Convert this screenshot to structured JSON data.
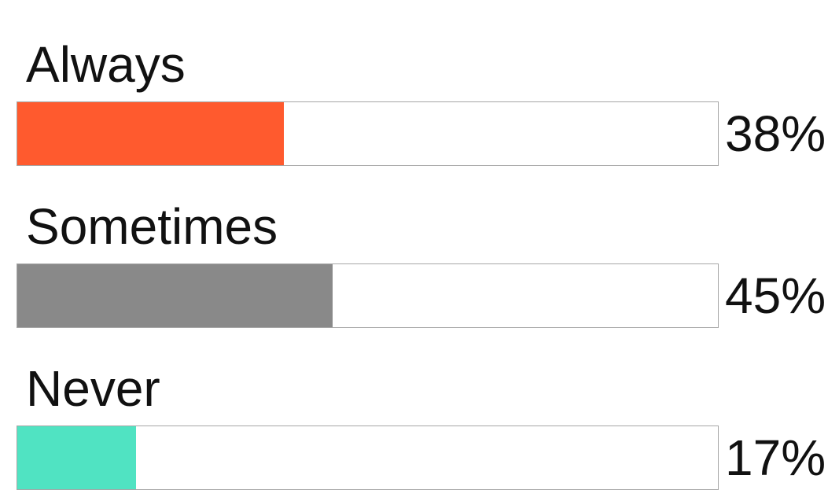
{
  "chart_data": {
    "type": "bar",
    "orientation": "horizontal",
    "title": "",
    "xlabel": "",
    "ylabel": "",
    "xlim": [
      0,
      100
    ],
    "categories": [
      "Always",
      "Sometimes",
      "Never"
    ],
    "values": [
      38,
      45,
      17
    ],
    "value_labels": [
      "38%",
      "45%",
      "17%"
    ],
    "colors": [
      "#ff5a2e",
      "#898989",
      "#50e3c2"
    ],
    "grid": false,
    "legend": "none"
  }
}
